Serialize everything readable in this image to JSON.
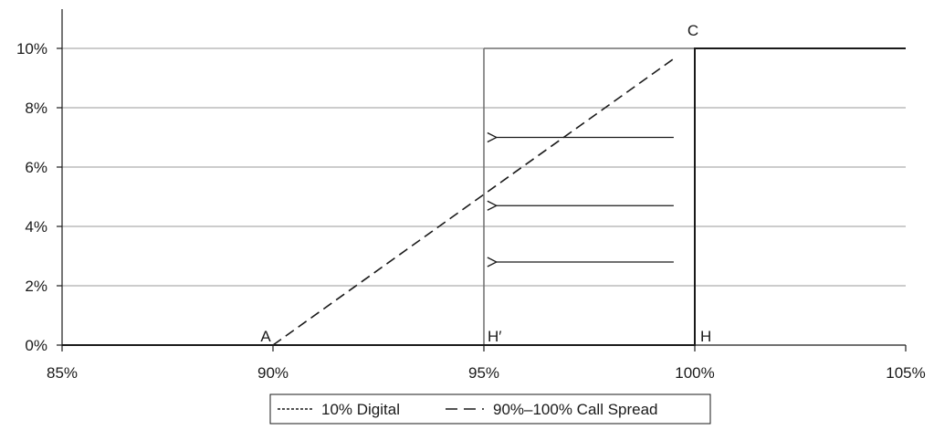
{
  "chart_data": {
    "type": "line",
    "xlim": [
      0.85,
      1.05
    ],
    "ylim": [
      0,
      0.1
    ],
    "x_ticks": [
      "85%",
      "90%",
      "95%",
      "100%",
      "105%"
    ],
    "x_tick_values": [
      0.85,
      0.9,
      0.95,
      1.0,
      1.05
    ],
    "y_ticks": [
      "0%",
      "2%",
      "4%",
      "6%",
      "8%",
      "10%"
    ],
    "y_tick_values": [
      0,
      0.02,
      0.04,
      0.06,
      0.08,
      0.1
    ],
    "grid": "horizontal",
    "legend_position": "bottom",
    "series": [
      {
        "name": "10% Digital",
        "style": "dotted",
        "x": [
          0.85,
          1.0,
          1.0,
          1.05
        ],
        "y": [
          0,
          0,
          0.1,
          0.1
        ]
      },
      {
        "name": "90%–100% Call Spread",
        "style": "dashed",
        "x": [
          0.85,
          0.9,
          1.0,
          1.05
        ],
        "y": [
          0,
          0,
          0.1,
          0.1
        ]
      }
    ],
    "shifted_barrier": {
      "x": 0.95,
      "y_top": 0.1
    },
    "arrows": [
      {
        "from_x": 0.995,
        "to_x": 0.953,
        "y": 0.07
      },
      {
        "from_x": 0.995,
        "to_x": 0.953,
        "y": 0.047
      },
      {
        "from_x": 0.995,
        "to_x": 0.953,
        "y": 0.028
      }
    ],
    "annotations": [
      {
        "text": "A",
        "x": 0.9,
        "y": 0
      },
      {
        "text": "H′",
        "x": 0.95,
        "y": 0
      },
      {
        "text": "H",
        "x": 1.0,
        "y": 0
      },
      {
        "text": "C",
        "x": 1.0,
        "y": 0.1
      }
    ],
    "colors": {
      "line": "#1a1a1a",
      "grid": "#9a9a9a",
      "barrier": "#6e6e6e"
    }
  }
}
